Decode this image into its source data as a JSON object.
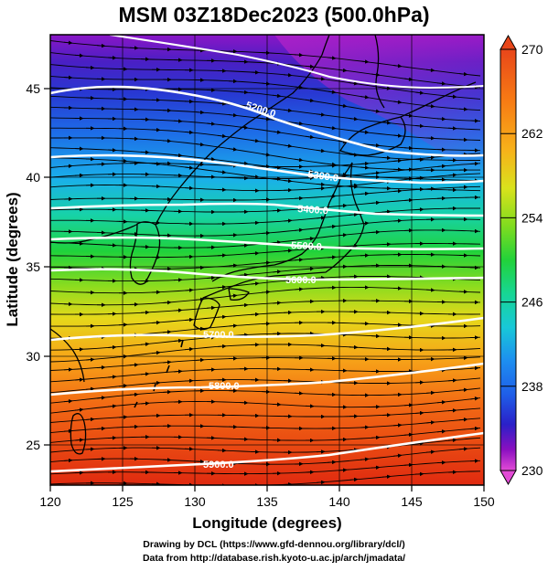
{
  "figure": {
    "title": "MSM 03Z18Dec2023 (500.0hPa)",
    "x_axis_label": "Longitude (degrees)",
    "y_axis_label": "Latitude  (degrees)",
    "x_ticks": [
      120,
      125,
      130,
      135,
      140,
      145,
      150
    ],
    "y_ticks": [
      25,
      30,
      35,
      40,
      45
    ],
    "lon_range": [
      120,
      150
    ],
    "lat_range": [
      22.4,
      47.6
    ],
    "colorbar": {
      "min": 230,
      "max": 270,
      "labels": [
        "270",
        "262",
        "254",
        "246",
        "238",
        "230"
      ],
      "label_values": [
        270,
        262,
        254,
        246,
        238,
        230
      ],
      "scale_colors": [
        "#e24bd6",
        "#8a0fc0",
        "#2a20c8",
        "#1f5ee8",
        "#1d8ef0",
        "#18c8d8",
        "#17d694",
        "#22d23a",
        "#7fdc1f",
        "#d9e21c",
        "#f7b21a",
        "#f77a14",
        "#e82a10"
      ]
    },
    "contours": [
      {
        "label": "5200.0"
      },
      {
        "label": "5300.0"
      },
      {
        "label": "5400.0"
      },
      {
        "label": "5500.0"
      },
      {
        "label": "5600.0"
      },
      {
        "label": "5700.0"
      },
      {
        "label": "5800.0"
      },
      {
        "label": "5900.0"
      }
    ]
  },
  "credits": {
    "line1": "Drawing by DCL (https://www.gfd-dennou.org/library/dcl/)",
    "line2": "Data from http://database.rish.kyoto-u.ac.jp/arch/jmadata/"
  }
}
